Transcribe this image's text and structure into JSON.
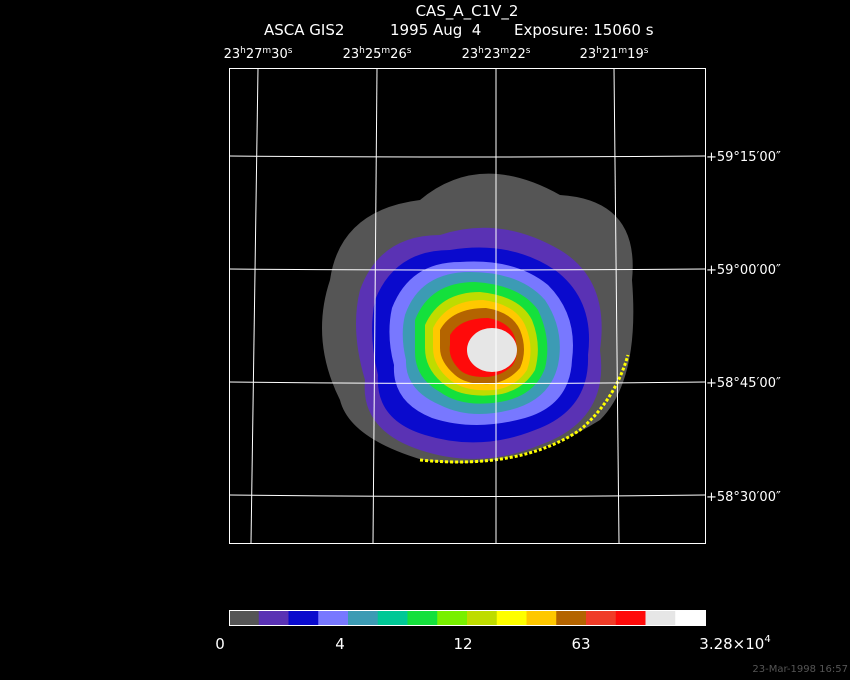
{
  "header": {
    "title": "CAS_A_C1V_2",
    "instrument": "ASCA GIS2",
    "date": "1995 Aug  4",
    "exposure": "Exposure: 15060 s"
  },
  "ra_labels": [
    [
      "23",
      "h",
      "27",
      "m",
      "30",
      "s"
    ],
    [
      "23",
      "h",
      "25",
      "m",
      "26",
      "s"
    ],
    [
      "23",
      "h",
      "23",
      "m",
      "22",
      "s"
    ],
    [
      "23",
      "h",
      "21",
      "m",
      "19",
      "s"
    ]
  ],
  "dec_labels": [
    "+59°15′00″",
    "+59°00′00″",
    "+58°45′00″",
    "+58°30′00″"
  ],
  "colorbar": {
    "colors": [
      "#555555",
      "#5a32b4",
      "#0a0acd",
      "#7878ff",
      "#3c9bb4",
      "#00c896",
      "#14e03c",
      "#78f000",
      "#bedc00",
      "#ffff00",
      "#ffc800",
      "#b46400",
      "#f03c28",
      "#ff0a0a",
      "#e6e6e6",
      "#ffffff"
    ],
    "labels": [
      [
        "0"
      ],
      [
        "4"
      ],
      [
        "12"
      ],
      [
        "63"
      ],
      [
        "3.28×10",
        "4"
      ]
    ]
  },
  "footer": "23-Mar-1998 16:57"
}
